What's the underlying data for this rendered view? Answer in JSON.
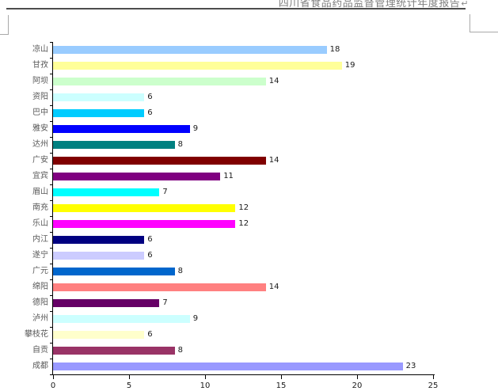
{
  "document": {
    "header_title": "四川省食品药品监督管理统计年度报告",
    "paragraph_mark": "↵"
  },
  "chart_data": {
    "type": "bar",
    "orientation": "horizontal",
    "title": "",
    "xlabel": "",
    "ylabel": "",
    "grid": false,
    "legend": "none",
    "data_labels": "outside-end",
    "xlim": [
      0,
      25
    ],
    "x_ticks": [
      "0",
      "5",
      "10",
      "15",
      "20",
      "25"
    ],
    "categories": [
      "凉山",
      "甘孜",
      "阿坝",
      "资阳",
      "巴中",
      "雅安",
      "达州",
      "广安",
      "宜宾",
      "眉山",
      "南充",
      "乐山",
      "内江",
      "遂宁",
      "广元",
      "绵阳",
      "德阳",
      "泸州",
      "攀枝花",
      "自贡",
      "成都"
    ],
    "values": [
      18,
      19,
      14,
      6,
      6,
      9,
      8,
      14,
      11,
      7,
      12,
      12,
      6,
      6,
      8,
      14,
      7,
      9,
      6,
      8,
      23
    ],
    "bar_colors": [
      "#99CCFF",
      "#FFFF99",
      "#CCFFCC",
      "#CCFFFF",
      "#00CCFF",
      "#0000FF",
      "#008080",
      "#800000",
      "#800080",
      "#00FFFF",
      "#FFFF00",
      "#FF00FF",
      "#000080",
      "#CCCCFF",
      "#0066CC",
      "#FF8080",
      "#660066",
      "#CCFFFF",
      "#FFFFCC",
      "#993366",
      "#9999FF"
    ],
    "colors": {
      "axis": "#000000",
      "category_label": "#595959",
      "value_label": "#1a1a1a",
      "background": "#ffffff"
    }
  }
}
